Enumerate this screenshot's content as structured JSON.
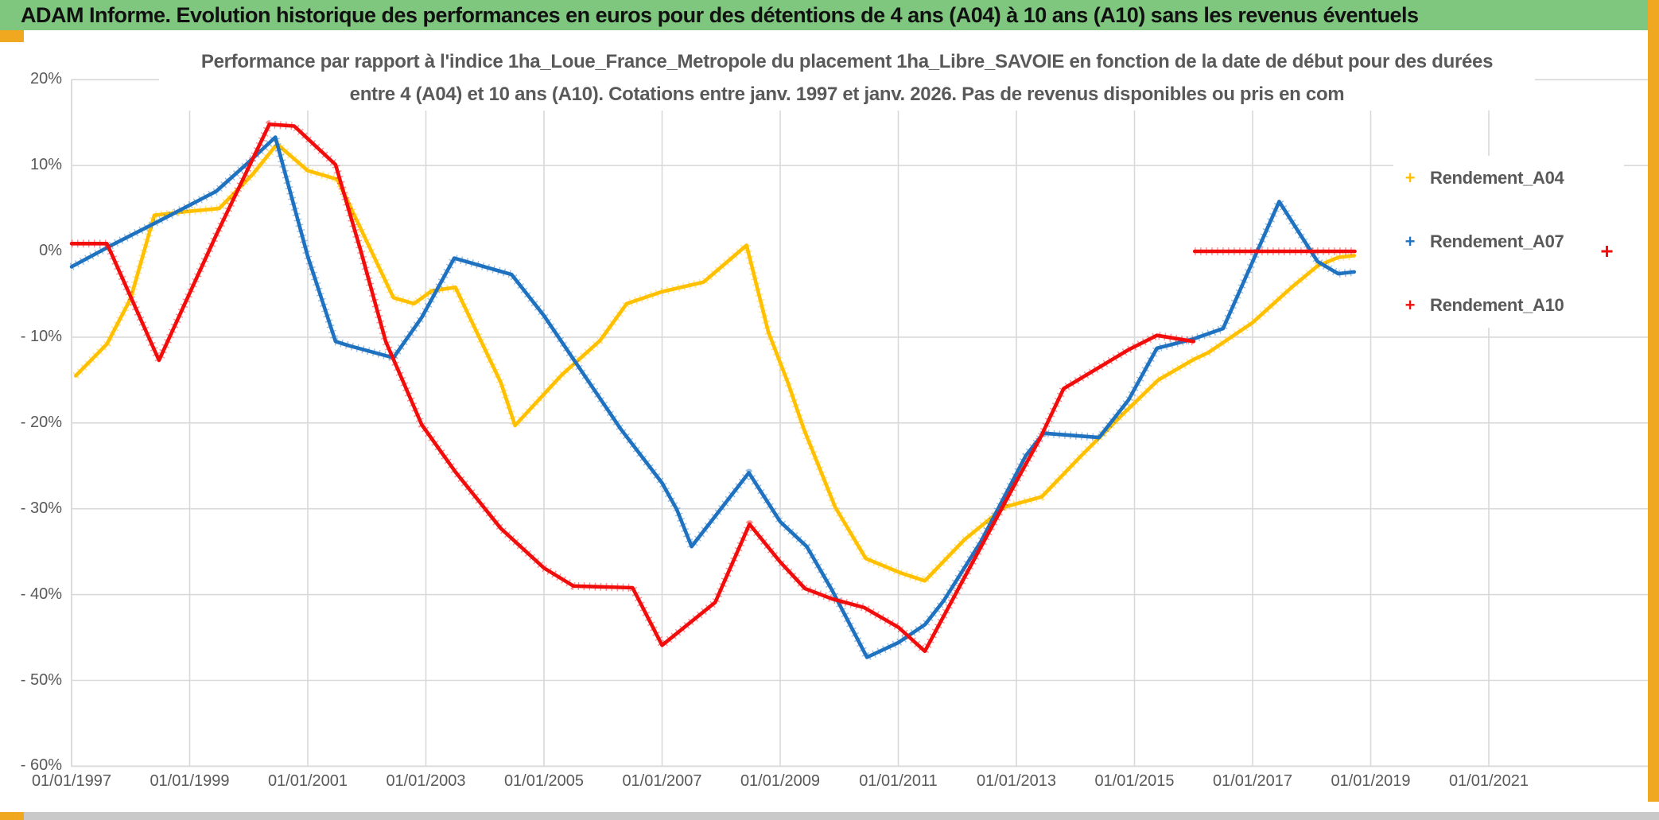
{
  "header": {
    "title": "ADAM Informe. Evolution historique des performances en euros pour des détentions de 4 ans (A04) à 10 ans (A10) sans les revenus éventuels",
    "bg_color": "#7fc77f",
    "accent_color": "#f0a820"
  },
  "chart_data": {
    "type": "line",
    "marker_style": "plus",
    "title_line1": "Performance par rapport à l'indice 1ha_Loue_France_Metropole  du placement 1ha_Libre_SAVOIE en fonction de la date de début pour des durées",
    "title_line2": "entre 4 (A04) et 10 ans (A10). Cotations entre janv. 1997 et janv. 2026. Pas de revenus disponibles ou pris en com",
    "grid": true,
    "zero_gridline": false,
    "grid_color": "#d9d9d9",
    "axis_text_color": "#595959",
    "legend_position": "inside-top-right",
    "xlim_years": [
      1997,
      2023.75
    ],
    "ylim": [
      -60,
      20
    ],
    "y_tick_values": [
      20,
      10,
      0,
      -10,
      -20,
      -30,
      -40,
      -50,
      -60
    ],
    "y_tick_labels": [
      "20%",
      "10%",
      "0%",
      "- 10%",
      "- 20%",
      "- 30%",
      "- 40%",
      "- 50%",
      "- 60%"
    ],
    "x_tick_years": [
      1997,
      1999,
      2001,
      2003,
      2005,
      2007,
      2009,
      2011,
      2013,
      2015,
      2017,
      2019,
      2021
    ],
    "x_tick_labels": [
      "01/01/1997",
      "01/01/1999",
      "01/01/2001",
      "01/01/2003",
      "01/01/2005",
      "01/01/2007",
      "01/01/2009",
      "01/01/2011",
      "01/01/2013",
      "01/01/2015",
      "01/01/2017",
      "01/01/2019",
      "01/01/2021"
    ],
    "series": [
      {
        "name": "Rendement_A04",
        "color": "#FFC000",
        "points": [
          [
            1997.07,
            -14.5
          ],
          [
            1997.6,
            -10.8
          ],
          [
            1998.0,
            -5.5
          ],
          [
            1998.4,
            4.2
          ],
          [
            1998.9,
            4.6
          ],
          [
            1999.5,
            5.0
          ],
          [
            2000.07,
            9.0
          ],
          [
            2000.48,
            12.5
          ],
          [
            2001.0,
            9.4
          ],
          [
            2001.5,
            8.4
          ],
          [
            2002.45,
            -5.4
          ],
          [
            2002.8,
            -6.1
          ],
          [
            2003.1,
            -4.6
          ],
          [
            2003.5,
            -4.2
          ],
          [
            2004.27,
            -15.3
          ],
          [
            2004.51,
            -20.3
          ],
          [
            2005.3,
            -14.4
          ],
          [
            2005.95,
            -10.4
          ],
          [
            2006.4,
            -6.1
          ],
          [
            2007.0,
            -4.7
          ],
          [
            2007.7,
            -3.6
          ],
          [
            2008.43,
            0.7
          ],
          [
            2008.8,
            -9.4
          ],
          [
            2009.13,
            -15.3
          ],
          [
            2009.4,
            -20.7
          ],
          [
            2009.93,
            -29.8
          ],
          [
            2010.45,
            -35.8
          ],
          [
            2011.05,
            -37.5
          ],
          [
            2011.45,
            -38.4
          ],
          [
            2012.12,
            -33.6
          ],
          [
            2012.8,
            -29.8
          ],
          [
            2013.43,
            -28.6
          ],
          [
            2014.1,
            -23.8
          ],
          [
            2014.8,
            -19.0
          ],
          [
            2015.4,
            -15.0
          ],
          [
            2016.0,
            -12.6
          ],
          [
            2016.25,
            -11.8
          ],
          [
            2017.0,
            -8.3
          ],
          [
            2017.66,
            -4.2
          ],
          [
            2018.1,
            -1.7
          ],
          [
            2018.45,
            -0.7
          ],
          [
            2018.72,
            -0.5
          ]
        ]
      },
      {
        "name": "Rendement_A07",
        "color": "#1F72C0",
        "points": [
          [
            1997.0,
            -1.8
          ],
          [
            1997.7,
            0.8
          ],
          [
            1998.5,
            3.6
          ],
          [
            1999.45,
            7.0
          ],
          [
            2000.0,
            10.4
          ],
          [
            2000.45,
            13.3
          ],
          [
            2001.0,
            -0.6
          ],
          [
            2001.47,
            -10.5
          ],
          [
            2001.7,
            -11.0
          ],
          [
            2002.45,
            -12.4
          ],
          [
            2002.93,
            -7.7
          ],
          [
            2003.48,
            -0.8
          ],
          [
            2004.45,
            -2.7
          ],
          [
            2005.0,
            -7.5
          ],
          [
            2006.3,
            -20.7
          ],
          [
            2007.0,
            -27.0
          ],
          [
            2007.25,
            -30.1
          ],
          [
            2007.5,
            -34.4
          ],
          [
            2008.47,
            -25.8
          ],
          [
            2009.0,
            -31.5
          ],
          [
            2009.45,
            -34.4
          ],
          [
            2009.88,
            -39.5
          ],
          [
            2010.47,
            -47.3
          ],
          [
            2011.0,
            -45.6
          ],
          [
            2011.45,
            -43.5
          ],
          [
            2011.77,
            -40.7
          ],
          [
            2012.4,
            -33.8
          ],
          [
            2013.16,
            -23.8
          ],
          [
            2013.46,
            -21.2
          ],
          [
            2014.4,
            -21.7
          ],
          [
            2014.9,
            -17.3
          ],
          [
            2015.38,
            -11.3
          ],
          [
            2016.0,
            -10.2
          ],
          [
            2016.5,
            -9.0
          ],
          [
            2017.45,
            5.8
          ],
          [
            2018.1,
            -1.2
          ],
          [
            2018.45,
            -2.6
          ],
          [
            2018.72,
            -2.4
          ]
        ]
      },
      {
        "name": "Rendement_A10",
        "color": "#F20D0D",
        "points": [
          [
            1997.0,
            0.9
          ],
          [
            1997.6,
            0.9
          ],
          [
            1998.48,
            -12.7
          ],
          [
            1999.45,
            1.9
          ],
          [
            2000.35,
            14.8
          ],
          [
            2000.77,
            14.6
          ],
          [
            2001.47,
            10.1
          ],
          [
            2001.9,
            0.0
          ],
          [
            2002.32,
            -10.5
          ],
          [
            2002.93,
            -20.2
          ],
          [
            2003.5,
            -25.7
          ],
          [
            2004.27,
            -32.3
          ],
          [
            2005.0,
            -36.9
          ],
          [
            2005.5,
            -39.0
          ],
          [
            2006.5,
            -39.2
          ],
          [
            2007.0,
            -45.9
          ],
          [
            2007.9,
            -40.9
          ],
          [
            2008.48,
            -31.8
          ],
          [
            2009.0,
            -36.2
          ],
          [
            2009.42,
            -39.3
          ],
          [
            2009.88,
            -40.5
          ],
          [
            2010.42,
            -41.5
          ],
          [
            2011.0,
            -43.8
          ],
          [
            2011.45,
            -46.6
          ],
          [
            2012.12,
            -38.0
          ],
          [
            2013.0,
            -26.8
          ],
          [
            2013.4,
            -21.8
          ],
          [
            2013.8,
            -16.0
          ],
          [
            2014.89,
            -11.5
          ],
          [
            2015.38,
            -9.8
          ],
          [
            2016.0,
            -10.5
          ]
        ],
        "extra_segments": [
          [
            [
              2016.02,
              0.0
            ],
            [
              2018.73,
              0.0
            ]
          ]
        ],
        "stray_points": [
          [
            2023.0,
            0.0
          ]
        ]
      }
    ]
  }
}
